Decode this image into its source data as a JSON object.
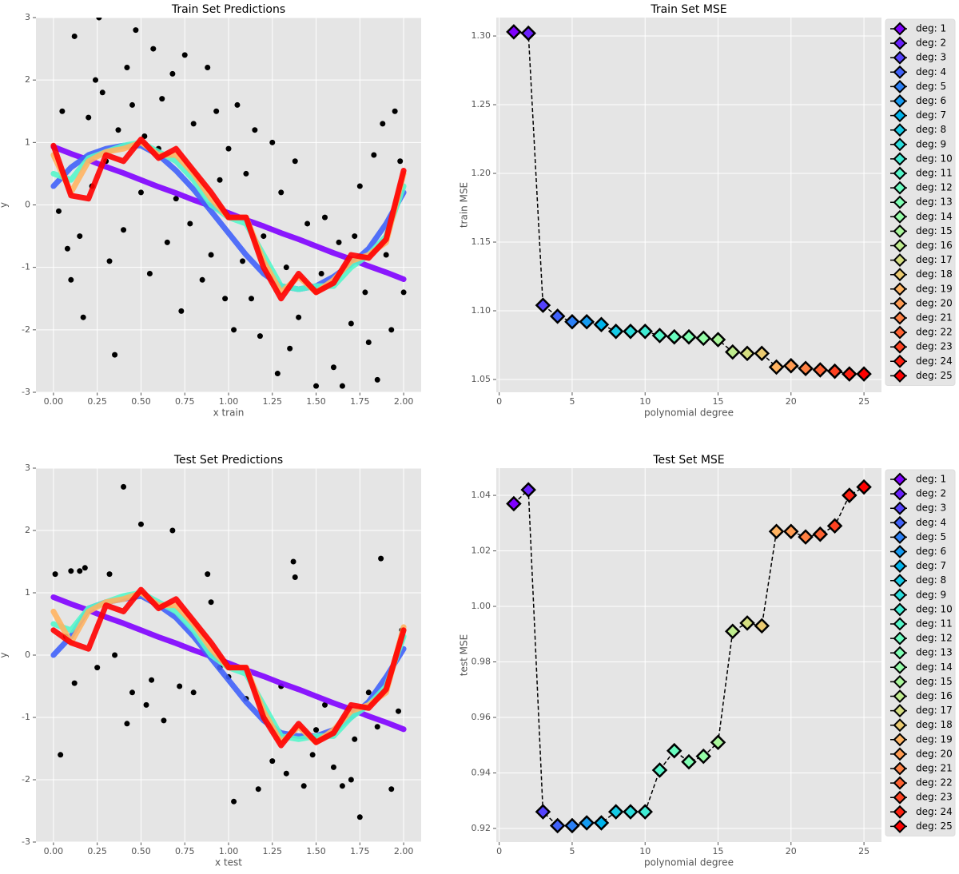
{
  "chart_data": [
    {
      "type": "scatter",
      "title": "Train Set Predictions",
      "xlabel": "x train",
      "ylabel": "y",
      "xlim": [
        -0.1,
        2.1
      ],
      "ylim": [
        -3,
        3
      ],
      "xticks": [
        {
          "value": 0,
          "label": "0.00"
        },
        0.25,
        {
          "value": 0.5,
          "label": "0.50"
        },
        0.75,
        {
          "value": 1,
          "label": "1.00"
        },
        1.25,
        {
          "value": 1.5,
          "label": "1.50"
        },
        1.75,
        {
          "value": 2,
          "label": "2.00"
        }
      ],
      "yticks": [
        -3,
        -2,
        -1,
        0,
        1,
        2,
        3
      ],
      "grid": true,
      "points": {
        "color": "#000000",
        "x": [
          0.03,
          0.05,
          0.08,
          0.1,
          0.12,
          0.15,
          0.17,
          0.2,
          0.22,
          0.24,
          0.26,
          0.28,
          0.3,
          0.32,
          0.35,
          0.37,
          0.4,
          0.42,
          0.45,
          0.47,
          0.5,
          0.52,
          0.55,
          0.57,
          0.6,
          0.62,
          0.65,
          0.68,
          0.7,
          0.73,
          0.75,
          0.78,
          0.8,
          0.85,
          0.88,
          0.9,
          0.93,
          0.95,
          0.98,
          1.0,
          1.03,
          1.05,
          1.08,
          1.1,
          1.13,
          1.15,
          1.18,
          1.2,
          1.25,
          1.28,
          1.3,
          1.33,
          1.35,
          1.38,
          1.4,
          1.45,
          1.5,
          1.53,
          1.55,
          1.6,
          1.63,
          1.65,
          1.7,
          1.72,
          1.75,
          1.78,
          1.8,
          1.83,
          1.85,
          1.88,
          1.9,
          1.93,
          1.95,
          1.98,
          2.0
        ],
        "y": [
          -0.1,
          1.5,
          -0.7,
          -1.2,
          2.7,
          -0.5,
          -1.8,
          1.4,
          0.3,
          2.0,
          3.0,
          1.8,
          0.7,
          -0.9,
          -2.4,
          1.2,
          -0.4,
          2.2,
          1.6,
          2.8,
          0.2,
          1.1,
          -1.1,
          2.5,
          0.9,
          1.7,
          -0.6,
          2.1,
          0.1,
          -1.7,
          2.4,
          -0.3,
          1.3,
          -1.2,
          2.2,
          -0.8,
          1.5,
          0.4,
          -1.5,
          0.9,
          -2.0,
          1.6,
          -0.9,
          0.5,
          -1.5,
          1.2,
          -2.1,
          -0.5,
          1.0,
          -2.7,
          0.2,
          -1.0,
          -2.3,
          0.7,
          -1.8,
          -0.3,
          -2.9,
          -1.1,
          -0.2,
          -2.6,
          -0.6,
          -2.9,
          -1.9,
          -0.5,
          0.3,
          -1.4,
          -2.2,
          0.8,
          -2.8,
          1.3,
          -0.8,
          -2.0,
          1.5,
          0.7,
          -1.4
        ]
      },
      "series": [
        {
          "color": "#8000ff",
          "x": [
            0,
            0.1,
            0.2,
            0.3,
            0.4,
            0.5,
            0.6,
            0.7,
            0.8,
            0.9,
            1.0,
            1.1,
            1.2,
            1.3,
            1.4,
            1.5,
            1.6,
            1.7,
            1.8,
            1.9,
            2.0
          ],
          "values": [
            0.93,
            0.82,
            0.72,
            0.61,
            0.51,
            0.4,
            0.29,
            0.19,
            0.08,
            -0.02,
            -0.13,
            -0.24,
            -0.34,
            -0.45,
            -0.55,
            -0.66,
            -0.77,
            -0.87,
            -0.98,
            -1.08,
            -1.19
          ]
        },
        {
          "color": "#4062fa",
          "x": [
            0,
            0.1,
            0.2,
            0.3,
            0.4,
            0.5,
            0.6,
            0.7,
            0.8,
            0.9,
            1.0,
            1.1,
            1.2,
            1.3,
            1.4,
            1.5,
            1.6,
            1.7,
            1.8,
            1.9,
            2.0
          ],
          "values": [
            0.3,
            0.6,
            0.8,
            0.9,
            0.95,
            0.95,
            0.8,
            0.55,
            0.25,
            -0.1,
            -0.45,
            -0.8,
            -1.1,
            -1.3,
            -1.35,
            -1.3,
            -1.15,
            -0.95,
            -0.7,
            -0.3,
            0.2
          ]
        },
        {
          "color": "#55f6ca",
          "x": [
            0,
            0.1,
            0.2,
            0.3,
            0.4,
            0.5,
            0.6,
            0.7,
            0.8,
            0.9,
            1.0,
            1.1,
            1.2,
            1.3,
            1.4,
            1.5,
            1.6,
            1.7,
            1.8,
            1.9,
            2.0
          ],
          "values": [
            0.5,
            0.4,
            0.75,
            0.85,
            0.95,
            1.0,
            0.85,
            0.7,
            0.4,
            0.0,
            -0.2,
            -0.3,
            -0.8,
            -1.3,
            -1.35,
            -1.3,
            -1.3,
            -1.0,
            -0.8,
            -0.5,
            0.3
          ]
        },
        {
          "color": "#ffb462",
          "x": [
            0,
            0.1,
            0.2,
            0.3,
            0.4,
            0.5,
            0.6,
            0.7,
            0.8,
            0.9,
            1.0,
            1.1,
            1.2,
            1.3,
            1.4,
            1.5,
            1.6,
            1.7,
            1.8,
            1.9,
            2.0
          ],
          "values": [
            0.8,
            0.2,
            0.7,
            0.85,
            0.9,
            1.0,
            0.8,
            0.8,
            0.5,
            0.1,
            -0.2,
            -0.2,
            -0.9,
            -1.4,
            -1.15,
            -1.4,
            -1.2,
            -0.9,
            -0.8,
            -0.6,
            0.5
          ]
        },
        {
          "color": "#ff0000",
          "x": [
            0,
            0.1,
            0.2,
            0.3,
            0.4,
            0.5,
            0.6,
            0.7,
            0.8,
            0.9,
            1.0,
            1.1,
            1.2,
            1.3,
            1.4,
            1.5,
            1.6,
            1.7,
            1.8,
            1.9,
            2.0
          ],
          "values": [
            0.95,
            0.15,
            0.1,
            0.8,
            0.7,
            1.05,
            0.75,
            0.9,
            0.55,
            0.2,
            -0.2,
            -0.2,
            -1.0,
            -1.5,
            -1.1,
            -1.4,
            -1.25,
            -0.8,
            -0.85,
            -0.55,
            0.55
          ]
        }
      ]
    },
    {
      "type": "line",
      "title": "Train Set MSE",
      "xlabel": "polynomial degree",
      "ylabel": "train MSE",
      "xlim": [
        -0.2,
        26.2
      ],
      "ylim": [
        1.0407,
        1.3134
      ],
      "xticks": [
        0,
        5,
        10,
        15,
        20,
        25
      ],
      "yticks": [
        1.05,
        {
          "value": 1.1,
          "label": "1.10"
        },
        1.15,
        {
          "value": 1.2,
          "label": "1.20"
        },
        1.25,
        {
          "value": 1.3,
          "label": "1.30"
        }
      ],
      "grid": true,
      "line_color": "#000000",
      "legend": "outside right",
      "x": [
        1,
        2,
        3,
        4,
        5,
        6,
        7,
        8,
        9,
        10,
        11,
        12,
        13,
        14,
        15,
        16,
        17,
        18,
        19,
        20,
        21,
        22,
        23,
        24,
        25
      ],
      "values": [
        1.303,
        1.302,
        1.104,
        1.096,
        1.092,
        1.092,
        1.09,
        1.085,
        1.085,
        1.085,
        1.082,
        1.081,
        1.081,
        1.08,
        1.079,
        1.07,
        1.069,
        1.069,
        1.059,
        1.06,
        1.058,
        1.057,
        1.056,
        1.054,
        1.054
      ],
      "colors": [
        "#8000ff",
        "#6a21fe",
        "#5542fd",
        "#4062fa",
        "#2b80f6",
        "#159bf1",
        "#00b4ec",
        "#15cae5",
        "#2bdddd",
        "#40ecd4",
        "#55f6ca",
        "#6afdc0",
        "#80ffb4",
        "#95fda8",
        "#aaf69b",
        "#bfec8e",
        "#d4dd80",
        "#eaca71",
        "#ffb462",
        "#ff9b52",
        "#ff8042",
        "#ff6232",
        "#ff4221",
        "#ff2111",
        "#ff0000"
      ],
      "legend_labels": [
        "deg: 1",
        "deg: 2",
        "deg: 3",
        "deg: 4",
        "deg: 5",
        "deg: 6",
        "deg: 7",
        "deg: 8",
        "deg: 9",
        "deg: 10",
        "deg: 11",
        "deg: 12",
        "deg: 13",
        "deg: 14",
        "deg: 15",
        "deg: 16",
        "deg: 17",
        "deg: 18",
        "deg: 19",
        "deg: 20",
        "deg: 21",
        "deg: 22",
        "deg: 23",
        "deg: 24",
        "deg: 25"
      ]
    },
    {
      "type": "scatter",
      "title": "Test Set Predictions",
      "xlabel": "x test",
      "ylabel": "y",
      "xlim": [
        -0.1,
        2.1
      ],
      "ylim": [
        -3,
        3
      ],
      "xticks": [
        {
          "value": 0,
          "label": "0.00"
        },
        0.25,
        {
          "value": 0.5,
          "label": "0.50"
        },
        0.75,
        {
          "value": 1,
          "label": "1.00"
        },
        1.25,
        {
          "value": 1.5,
          "label": "1.50"
        },
        1.75,
        {
          "value": 2,
          "label": "2.00"
        }
      ],
      "yticks": [
        -3,
        -2,
        -1,
        0,
        1,
        2,
        3
      ],
      "grid": true,
      "points": {
        "color": "#000000",
        "x": [
          0.01,
          0.04,
          0.07,
          0.1,
          0.12,
          0.15,
          0.18,
          0.25,
          0.32,
          0.35,
          0.4,
          0.42,
          0.45,
          0.5,
          0.53,
          0.56,
          0.63,
          0.68,
          0.72,
          0.8,
          0.88,
          0.9,
          0.95,
          1.0,
          1.03,
          1.1,
          1.17,
          1.2,
          1.25,
          1.3,
          1.33,
          1.37,
          1.38,
          1.43,
          1.48,
          1.5,
          1.55,
          1.6,
          1.65,
          1.7,
          1.72,
          1.75,
          1.8,
          1.85,
          1.87,
          1.93,
          1.97,
          1.99
        ],
        "y": [
          1.3,
          -1.6,
          0.3,
          1.35,
          -0.45,
          1.35,
          1.4,
          -0.2,
          1.3,
          0.0,
          2.7,
          -1.1,
          -0.6,
          2.1,
          -0.8,
          -0.4,
          -1.05,
          2.0,
          -0.5,
          -0.6,
          1.3,
          0.85,
          -0.2,
          -0.35,
          -2.35,
          -0.7,
          -2.15,
          -1.0,
          -1.7,
          -0.5,
          -1.9,
          1.5,
          1.25,
          -2.1,
          -1.6,
          -1.2,
          -0.8,
          -1.8,
          -2.1,
          -2.0,
          -1.35,
          -2.6,
          -0.6,
          -1.15,
          1.55,
          -2.15,
          -0.9,
          0.4
        ]
      },
      "series": [
        {
          "color": "#8000ff",
          "x": [
            0,
            0.1,
            0.2,
            0.3,
            0.4,
            0.5,
            0.6,
            0.7,
            0.8,
            0.9,
            1.0,
            1.1,
            1.2,
            1.3,
            1.4,
            1.5,
            1.6,
            1.7,
            1.8,
            1.9,
            2.0
          ],
          "values": [
            0.93,
            0.82,
            0.72,
            0.61,
            0.51,
            0.4,
            0.29,
            0.19,
            0.08,
            -0.02,
            -0.13,
            -0.24,
            -0.34,
            -0.45,
            -0.55,
            -0.66,
            -0.77,
            -0.87,
            -0.98,
            -1.08,
            -1.19
          ]
        },
        {
          "color": "#4062fa",
          "x": [
            0,
            0.1,
            0.2,
            0.3,
            0.4,
            0.5,
            0.6,
            0.7,
            0.8,
            0.9,
            1.0,
            1.1,
            1.2,
            1.3,
            1.4,
            1.5,
            1.6,
            1.7,
            1.8,
            1.9,
            2.0
          ],
          "values": [
            0.0,
            0.3,
            0.75,
            0.85,
            0.9,
            0.95,
            0.8,
            0.6,
            0.3,
            -0.05,
            -0.4,
            -0.75,
            -1.05,
            -1.25,
            -1.3,
            -1.3,
            -1.2,
            -1.0,
            -0.75,
            -0.35,
            0.1
          ]
        },
        {
          "color": "#55f6ca",
          "x": [
            0,
            0.1,
            0.2,
            0.3,
            0.4,
            0.5,
            0.6,
            0.7,
            0.8,
            0.9,
            1.0,
            1.1,
            1.2,
            1.3,
            1.4,
            1.5,
            1.6,
            1.7,
            1.8,
            1.9,
            2.0
          ],
          "values": [
            0.5,
            0.4,
            0.75,
            0.85,
            0.95,
            1.0,
            0.85,
            0.7,
            0.4,
            0.0,
            -0.2,
            -0.3,
            -0.8,
            -1.3,
            -1.35,
            -1.3,
            -1.3,
            -1.0,
            -0.8,
            -0.5,
            0.3
          ]
        },
        {
          "color": "#ffb462",
          "x": [
            0,
            0.1,
            0.2,
            0.3,
            0.4,
            0.5,
            0.6,
            0.7,
            0.8,
            0.9,
            1.0,
            1.1,
            1.2,
            1.3,
            1.4,
            1.5,
            1.6,
            1.7,
            1.8,
            1.9,
            2.0
          ],
          "values": [
            0.7,
            0.2,
            0.7,
            0.85,
            0.9,
            1.0,
            0.8,
            0.8,
            0.5,
            0.1,
            -0.2,
            -0.2,
            -0.9,
            -1.4,
            -1.15,
            -1.4,
            -1.2,
            -0.9,
            -0.8,
            -0.6,
            0.45
          ]
        },
        {
          "color": "#ff0000",
          "x": [
            0,
            0.1,
            0.2,
            0.3,
            0.4,
            0.5,
            0.6,
            0.7,
            0.8,
            0.9,
            1.0,
            1.1,
            1.2,
            1.3,
            1.4,
            1.5,
            1.6,
            1.7,
            1.8,
            1.9,
            2.0
          ],
          "values": [
            0.4,
            0.2,
            0.1,
            0.8,
            0.7,
            1.05,
            0.75,
            0.9,
            0.55,
            0.2,
            -0.2,
            -0.2,
            -1.0,
            -1.45,
            -1.1,
            -1.4,
            -1.25,
            -0.8,
            -0.85,
            -0.55,
            0.4
          ]
        }
      ]
    },
    {
      "type": "line",
      "title": "Test Set MSE",
      "xlabel": "polynomial degree",
      "ylabel": "test MSE",
      "xlim": [
        -0.2,
        26.2
      ],
      "ylim": [
        0.9151,
        1.0498
      ],
      "xticks": [
        0,
        5,
        10,
        15,
        20,
        25
      ],
      "yticks": [
        0.92,
        0.94,
        0.96,
        0.98,
        {
          "value": 1,
          "label": "1.00"
        },
        1.02,
        1.04
      ],
      "grid": true,
      "line_color": "#000000",
      "legend": "outside right",
      "x": [
        1,
        2,
        3,
        4,
        5,
        6,
        7,
        8,
        9,
        10,
        11,
        12,
        13,
        14,
        15,
        16,
        17,
        18,
        19,
        20,
        21,
        22,
        23,
        24,
        25
      ],
      "values": [
        1.037,
        1.042,
        0.926,
        0.921,
        0.921,
        0.922,
        0.922,
        0.926,
        0.926,
        0.926,
        0.941,
        0.948,
        0.944,
        0.946,
        0.951,
        0.991,
        0.994,
        0.993,
        1.027,
        1.027,
        1.025,
        1.026,
        1.029,
        1.04,
        1.043
      ],
      "colors": [
        "#8000ff",
        "#6a21fe",
        "#5542fd",
        "#4062fa",
        "#2b80f6",
        "#159bf1",
        "#00b4ec",
        "#15cae5",
        "#2bdddd",
        "#40ecd4",
        "#55f6ca",
        "#6afdc0",
        "#80ffb4",
        "#95fda8",
        "#aaf69b",
        "#bfec8e",
        "#d4dd80",
        "#eaca71",
        "#ffb462",
        "#ff9b52",
        "#ff8042",
        "#ff6232",
        "#ff4221",
        "#ff2111",
        "#ff0000"
      ],
      "legend_labels": [
        "deg: 1",
        "deg: 2",
        "deg: 3",
        "deg: 4",
        "deg: 5",
        "deg: 6",
        "deg: 7",
        "deg: 8",
        "deg: 9",
        "deg: 10",
        "deg: 11",
        "deg: 12",
        "deg: 13",
        "deg: 14",
        "deg: 15",
        "deg: 16",
        "deg: 17",
        "deg: 18",
        "deg: 19",
        "deg: 20",
        "deg: 21",
        "deg: 22",
        "deg: 23",
        "deg: 24",
        "deg: 25"
      ]
    }
  ]
}
